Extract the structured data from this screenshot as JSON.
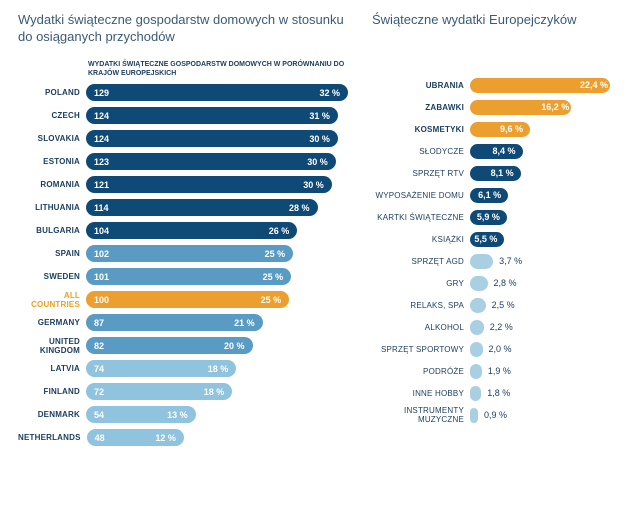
{
  "left": {
    "title": "Wydatki świąteczne gospodarstw domowych w stosunku do osiąganych przychodów",
    "subheading": "WYDATKI ŚWIĄTECZNE GOSPODARSTW DOMOWYCH\nW PORÓWNANIU DO KRAJÓW EUROPEJSKICH",
    "max_index": 129,
    "colors": {
      "dark": "#0f4a77",
      "mid": "#5a9bc4",
      "light": "#8fc3de",
      "highlight": "#ec9f2e"
    },
    "rows": [
      {
        "label": "POLAND",
        "index": 129,
        "pct": "32 %",
        "tier": "dark"
      },
      {
        "label": "CZECH",
        "index": 124,
        "pct": "31 %",
        "tier": "dark"
      },
      {
        "label": "SLOVAKIA",
        "index": 124,
        "pct": "30 %",
        "tier": "dark"
      },
      {
        "label": "ESTONIA",
        "index": 123,
        "pct": "30 %",
        "tier": "dark"
      },
      {
        "label": "ROMANIA",
        "index": 121,
        "pct": "30 %",
        "tier": "dark"
      },
      {
        "label": "LITHUANIA",
        "index": 114,
        "pct": "28 %",
        "tier": "dark"
      },
      {
        "label": "BULGARIA",
        "index": 104,
        "pct": "26 %",
        "tier": "dark"
      },
      {
        "label": "SPAIN",
        "index": 102,
        "pct": "25 %",
        "tier": "mid"
      },
      {
        "label": "SWEDEN",
        "index": 101,
        "pct": "25 %",
        "tier": "mid"
      },
      {
        "label": "ALL COUNTRIES",
        "index": 100,
        "pct": "25 %",
        "tier": "highlight",
        "highlight": true
      },
      {
        "label": "GERMANY",
        "index": 87,
        "pct": "21 %",
        "tier": "mid"
      },
      {
        "label": "UNITED KINGDOM",
        "index": 82,
        "pct": "20 %",
        "tier": "mid"
      },
      {
        "label": "LATVIA",
        "index": 74,
        "pct": "18 %",
        "tier": "light"
      },
      {
        "label": "FINLAND",
        "index": 72,
        "pct": "18 %",
        "tier": "light"
      },
      {
        "label": "DENMARK",
        "index": 54,
        "pct": "13 %",
        "tier": "light"
      },
      {
        "label": "NETHERLANDS",
        "index": 48,
        "pct": "12 %",
        "tier": "light"
      }
    ]
  },
  "right": {
    "title": "Świąteczne wydatki Europejczyków",
    "max_pct": 22.4,
    "colors": {
      "orange": "#ec9f2e",
      "dark": "#0f4a77",
      "light": "#a9cfe2",
      "text": "#1a3c5e"
    },
    "rows": [
      {
        "label": "UBRANIA",
        "pct": 22.4,
        "disp": "22,4 %",
        "tier": "orange",
        "bold": true,
        "inside": true
      },
      {
        "label": "ZABAWKI",
        "pct": 16.2,
        "disp": "16,2 %",
        "tier": "orange",
        "bold": true,
        "inside": true
      },
      {
        "label": "KOSMETYKI",
        "pct": 9.6,
        "disp": "9,6 %",
        "tier": "orange",
        "bold": true,
        "inside": true
      },
      {
        "label": "SŁODYCZE",
        "pct": 8.4,
        "disp": "8,4 %",
        "tier": "dark",
        "bold": false,
        "inside": true
      },
      {
        "label": "SPRZĘT RTV",
        "pct": 8.1,
        "disp": "8,1 %",
        "tier": "dark",
        "bold": false,
        "inside": true
      },
      {
        "label": "WYPOSAŻENIE DOMU",
        "pct": 6.1,
        "disp": "6,1 %",
        "tier": "dark",
        "bold": false,
        "inside": true
      },
      {
        "label": "KARTKI ŚWIĄTECZNE",
        "pct": 5.9,
        "disp": "5,9 %",
        "tier": "dark",
        "bold": false,
        "inside": true
      },
      {
        "label": "KSIĄŻKI",
        "pct": 5.5,
        "disp": "5,5 %",
        "tier": "dark",
        "bold": false,
        "inside": true
      },
      {
        "label": "SPRZĘT AGD",
        "pct": 3.7,
        "disp": "3,7 %",
        "tier": "light",
        "bold": false,
        "inside": false
      },
      {
        "label": "GRY",
        "pct": 2.8,
        "disp": "2,8 %",
        "tier": "light",
        "bold": false,
        "inside": false
      },
      {
        "label": "RELAKS, SPA",
        "pct": 2.5,
        "disp": "2,5 %",
        "tier": "light",
        "bold": false,
        "inside": false
      },
      {
        "label": "ALKOHOL",
        "pct": 2.2,
        "disp": "2,2 %",
        "tier": "light",
        "bold": false,
        "inside": false
      },
      {
        "label": "SPRZĘT SPORTOWY",
        "pct": 2.0,
        "disp": "2,0 %",
        "tier": "light",
        "bold": false,
        "inside": false
      },
      {
        "label": "PODRÓŻE",
        "pct": 1.9,
        "disp": "1,9 %",
        "tier": "light",
        "bold": false,
        "inside": false
      },
      {
        "label": "INNE HOBBY",
        "pct": 1.8,
        "disp": "1,8 %",
        "tier": "light",
        "bold": false,
        "inside": false
      },
      {
        "label": "INSTRUMENTY MUZYCZNE",
        "pct": 0.9,
        "disp": "0,9 %",
        "tier": "light",
        "bold": false,
        "inside": false
      }
    ]
  }
}
